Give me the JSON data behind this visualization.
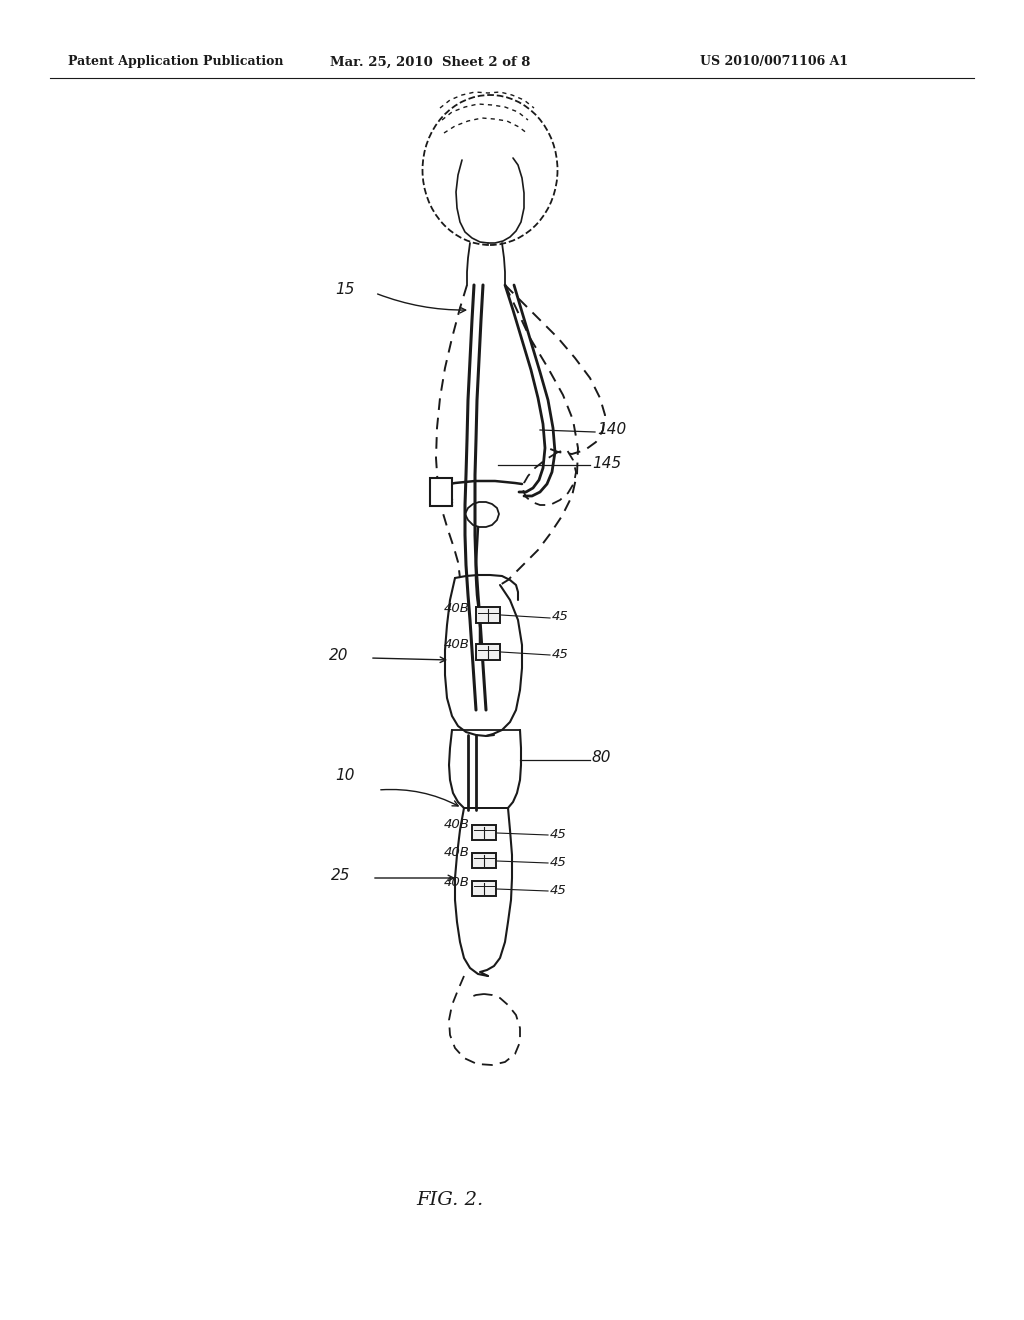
{
  "bg_color": "#ffffff",
  "line_color": "#1a1a1a",
  "header_left": "Patent Application Publication",
  "header_mid": "Mar. 25, 2010  Sheet 2 of 8",
  "header_right": "US 2010/0071106 A1",
  "fig_label": "FIG. 2."
}
